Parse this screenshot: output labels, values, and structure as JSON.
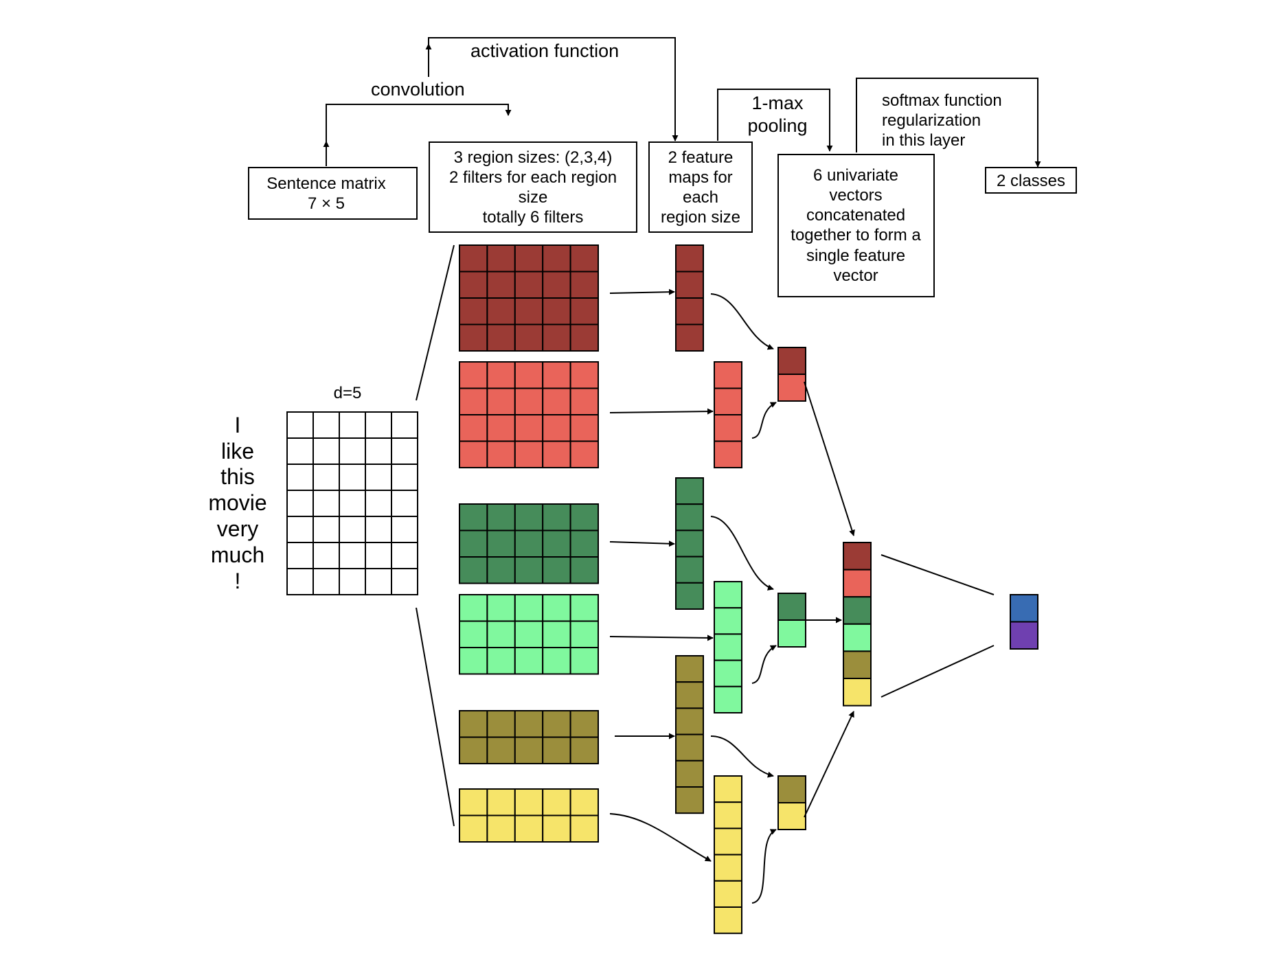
{
  "labels": {
    "convolution": "convolution",
    "activation": "activation function",
    "pooling": [
      "1-max",
      "pooling"
    ],
    "softmax": [
      "softmax function",
      "regularization",
      "in this layer"
    ],
    "d": "d=5"
  },
  "boxes": {
    "sentence_matrix": [
      "Sentence matrix",
      "7 × 5"
    ],
    "region_sizes": [
      "3 region sizes: (2,3,4)",
      "2 filters for each region",
      "size",
      "totally 6 filters"
    ],
    "feature_maps": [
      "2 feature",
      "maps for",
      "each",
      "region size"
    ],
    "univariate": [
      "6 univariate",
      "vectors",
      "concatenated",
      "together to form a",
      "single feature",
      "vector"
    ],
    "classes": [
      "2 classes"
    ]
  },
  "sentence": [
    "I",
    "like",
    "this",
    "movie",
    "very",
    "much",
    "!"
  ],
  "colors": {
    "dark_red": "#9b3b35",
    "red": "#e9645a",
    "dark_green": "#468c5a",
    "light_green": "#80f89e",
    "olive": "#9b8e3c",
    "yellow": "#f6e46a",
    "blue": "#386cb3",
    "purple": "#6f40b0"
  }
}
